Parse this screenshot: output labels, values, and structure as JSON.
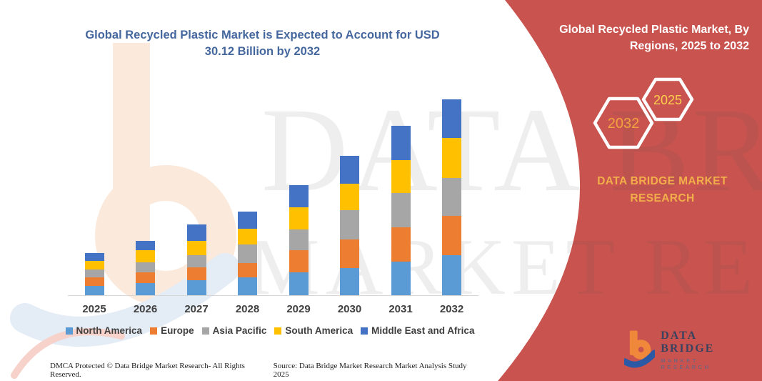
{
  "header": {
    "chart_title": "Global Recycled Plastic Market is Expected to Account for USD 30.12 Billion by 2032",
    "panel_title": "Global Recycled Plastic Market, By Regions, 2025 to 2032"
  },
  "side_panel": {
    "hexagons": [
      {
        "label": "2032"
      },
      {
        "label": "2025"
      }
    ],
    "brand_heading": "DATA BRIDGE MARKET RESEARCH"
  },
  "chart_data": {
    "type": "bar",
    "stacked": true,
    "unit": "USD Billion",
    "title": "Global Recycled Plastic Market is Expected to Account for USD 30.12 Billion by 2032",
    "xlabel": "",
    "ylabel": "",
    "y_axis_visible": false,
    "grid": false,
    "legend_position": "bottom",
    "categories": [
      "2025",
      "2026",
      "2027",
      "2028",
      "2029",
      "2030",
      "2031",
      "2032"
    ],
    "series": [
      {
        "name": "North America",
        "color": "#5B9BD5",
        "values": [
          1.4,
          1.9,
          2.3,
          2.7,
          3.5,
          4.2,
          5.2,
          6.2
        ]
      },
      {
        "name": "Europe",
        "color": "#ED7D31",
        "values": [
          1.4,
          1.6,
          2.0,
          2.3,
          3.4,
          4.4,
          5.2,
          6.0
        ]
      },
      {
        "name": "Asia Pacific",
        "color": "#A6A6A6",
        "values": [
          1.2,
          1.6,
          1.9,
          2.8,
          3.2,
          4.5,
          5.3,
          5.8
        ]
      },
      {
        "name": "South America",
        "color": "#FFC000",
        "values": [
          1.3,
          1.8,
          2.2,
          2.4,
          3.4,
          4.1,
          5.1,
          6.2
        ]
      },
      {
        "name": "Middle East and Africa",
        "color": "#4472C4",
        "values": [
          1.2,
          1.5,
          2.5,
          2.7,
          3.4,
          4.2,
          5.2,
          5.9
        ]
      }
    ],
    "totals": [
      6.5,
      8.4,
      10.9,
      12.9,
      16.9,
      21.4,
      26.0,
      30.1
    ]
  },
  "watermarks": {
    "line1": "DATA BRIDGE",
    "line2": "MARKET RESEARCH"
  },
  "footer": {
    "left": "DMCA Protected © Data Bridge Market Research-  All Rights Reserved.",
    "right": "Source: Data Bridge Market Research  Market Analysis Study 2025"
  },
  "logo": {
    "name": "DATA BRIDGE",
    "subtext": "MARKET RESEARCH"
  },
  "colors": {
    "panel_red": "#C9534E",
    "title_blue": "#44679E",
    "brand_gold": "#F2AE4B",
    "hex_2032_text": "#F0A33F",
    "hex_2025_text": "#FFCF4D",
    "axis_text": "#3F3F3F",
    "axis_line": "#D6D6D6",
    "logo_orange": "#F0883B",
    "logo_blue": "#2B59A5",
    "logo_navy": "#3A4260"
  }
}
